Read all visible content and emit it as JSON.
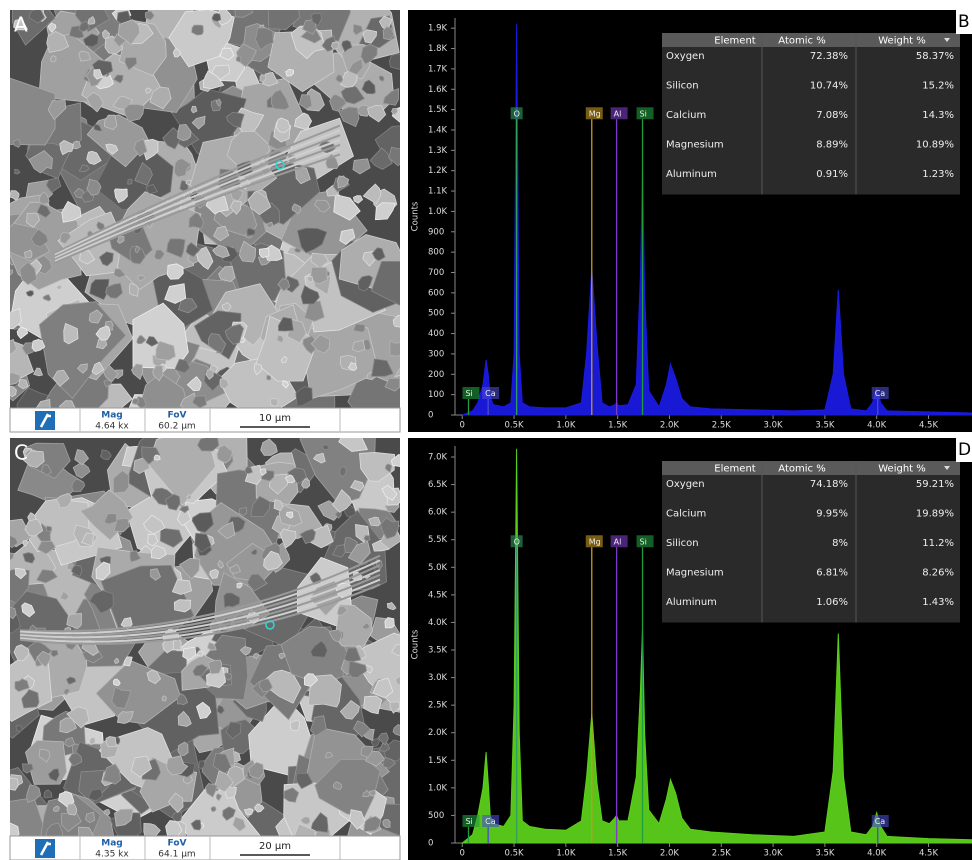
{
  "images": [
    {
      "panel_label": "A",
      "mag_label": "Mag",
      "mag": "4.64 kx",
      "fov_label": "FoV",
      "fov": "60.2 µm",
      "scale_bar": "10 µm"
    },
    {
      "panel_label": "C",
      "mag_label": "Mag",
      "mag": "4.35 kx",
      "fov_label": "FoV",
      "fov": "64.1 µm",
      "scale_bar": "20 µm"
    }
  ],
  "chart_data": [
    {
      "type": "area",
      "panel_label": "B",
      "y_label": "Counts",
      "x": [
        0,
        100,
        150,
        200,
        230,
        250,
        270,
        300,
        400,
        470,
        500,
        525,
        550,
        580,
        650,
        800,
        1000,
        1150,
        1200,
        1250,
        1300,
        1350,
        1420,
        1470,
        1490,
        1510,
        1600,
        1680,
        1720,
        1740,
        1760,
        1800,
        1900,
        1970,
        2010,
        2060,
        2120,
        2200,
        2400,
        2800,
        3200,
        3500,
        3580,
        3630,
        3680,
        3750,
        3900,
        3960,
        4000,
        4040,
        4100,
        4500,
        4920
      ],
      "series": [
        {
          "color": "#1a1ae0",
          "values": [
            0,
            20,
            60,
            150,
            270,
            200,
            90,
            50,
            40,
            60,
            300,
            1920,
            300,
            60,
            40,
            35,
            35,
            60,
            300,
            720,
            350,
            60,
            40,
            50,
            60,
            45,
            50,
            150,
            700,
            1220,
            600,
            120,
            40,
            150,
            250,
            180,
            80,
            40,
            30,
            25,
            20,
            25,
            200,
            615,
            200,
            30,
            20,
            60,
            130,
            60,
            20,
            15,
            10
          ]
        }
      ],
      "xlim": [
        -70,
        4920
      ],
      "ylim": [
        0,
        1950
      ],
      "xticks": [
        0,
        {
          "value": 500,
          "label": "0.5K"
        },
        {
          "value": 1000,
          "label": "1.0K"
        },
        {
          "value": 1500,
          "label": "1.5K"
        },
        {
          "value": 2000,
          "label": "2.0K"
        },
        {
          "value": 2500,
          "label": "2.5K"
        },
        {
          "value": 3000,
          "label": "3.0K"
        },
        {
          "value": 3500,
          "label": "3.5K"
        },
        {
          "value": 4000,
          "label": "4.0K"
        },
        {
          "value": 4500,
          "label": "4.5K"
        }
      ],
      "yticks": [
        0,
        100,
        200,
        300,
        400,
        500,
        600,
        700,
        800,
        900,
        {
          "value": 1000,
          "label": "1.0K"
        },
        {
          "value": 1100,
          "label": "1.1K"
        },
        {
          "value": 1200,
          "label": "1.2K"
        },
        {
          "value": 1300,
          "label": "1.3K"
        },
        {
          "value": 1400,
          "label": "1.4K"
        },
        {
          "value": 1500,
          "label": "1.5K"
        },
        {
          "value": 1600,
          "label": "1.6K"
        },
        {
          "value": 1700,
          "label": "1.7K"
        },
        {
          "value": 1800,
          "label": "1.8K"
        },
        {
          "value": 1900,
          "label": "1.9K"
        }
      ],
      "markers_top": [
        {
          "label": "O",
          "x": 525,
          "color": "#2f9e5f"
        },
        {
          "label": "Mg",
          "x": 1250,
          "color": "#c79a1e"
        },
        {
          "label": "Al",
          "x": 1490,
          "color": "#7a3cc8"
        },
        {
          "label": "Si",
          "x": 1740,
          "color": "#1f9e3f"
        }
      ],
      "markers_bottom": [
        {
          "label": "Si",
          "x": 60,
          "color": "#1f9e3f"
        },
        {
          "label": "Ca",
          "x": 250,
          "color": "#4a4ad0"
        },
        {
          "label": "Ca",
          "x": 4010,
          "color": "#4a4ad0"
        }
      ],
      "table": {
        "columns": [
          "Element",
          "Atomic %",
          "Weight %"
        ],
        "rows": [
          [
            "Oxygen",
            "72.38%",
            "58.37%"
          ],
          [
            "Silicon",
            "10.74%",
            "15.2%"
          ],
          [
            "Calcium",
            "7.08%",
            "14.3%"
          ],
          [
            "Magnesium",
            "8.89%",
            "10.89%"
          ],
          [
            "Aluminum",
            "0.91%",
            "1.23%"
          ]
        ]
      }
    },
    {
      "type": "area",
      "panel_label": "D",
      "y_label": "Counts",
      "x": [
        0,
        100,
        150,
        200,
        230,
        250,
        270,
        300,
        400,
        470,
        500,
        525,
        550,
        580,
        650,
        800,
        1000,
        1150,
        1200,
        1250,
        1300,
        1350,
        1420,
        1470,
        1490,
        1510,
        1600,
        1680,
        1720,
        1740,
        1760,
        1800,
        1900,
        1970,
        2010,
        2060,
        2120,
        2200,
        2400,
        2800,
        3200,
        3500,
        3580,
        3630,
        3680,
        3750,
        3900,
        3960,
        4000,
        4040,
        4100,
        4500,
        4920
      ],
      "series": [
        {
          "color": "#5ccf1a",
          "values": [
            0,
            150,
            500,
            1000,
            1650,
            1100,
            500,
            350,
            300,
            500,
            2500,
            7150,
            2000,
            400,
            300,
            250,
            230,
            400,
            1200,
            2350,
            1100,
            400,
            350,
            450,
            500,
            400,
            400,
            1200,
            2800,
            3900,
            2000,
            600,
            350,
            800,
            1150,
            900,
            450,
            250,
            200,
            150,
            120,
            200,
            1300,
            3800,
            1200,
            200,
            150,
            300,
            550,
            300,
            120,
            80,
            60
          ]
        }
      ],
      "xlim": [
        -70,
        4920
      ],
      "ylim": [
        0,
        7200
      ],
      "xticks": [
        0,
        {
          "value": 500,
          "label": "0.5K"
        },
        {
          "value": 1000,
          "label": "1.0K"
        },
        {
          "value": 1500,
          "label": "1.5K"
        },
        {
          "value": 2000,
          "label": "2.0K"
        },
        {
          "value": 2500,
          "label": "2.5K"
        },
        {
          "value": 3000,
          "label": "3.0K"
        },
        {
          "value": 3500,
          "label": "3.5K"
        },
        {
          "value": 4000,
          "label": "4.0K"
        },
        {
          "value": 4500,
          "label": "4.5K"
        }
      ],
      "yticks": [
        0,
        500,
        {
          "value": 1000,
          "label": "1.0K"
        },
        {
          "value": 1500,
          "label": "1.5K"
        },
        {
          "value": 2000,
          "label": "2.0K"
        },
        {
          "value": 2500,
          "label": "2.5K"
        },
        {
          "value": 3000,
          "label": "3.0K"
        },
        {
          "value": 3500,
          "label": "3.5K"
        },
        {
          "value": 4000,
          "label": "4.0K"
        },
        {
          "value": 4500,
          "label": "4.5K"
        },
        {
          "value": 5000,
          "label": "5.0K"
        },
        {
          "value": 5500,
          "label": "5.5K"
        },
        {
          "value": 6000,
          "label": "6.0K"
        },
        {
          "value": 6500,
          "label": "6.5K"
        },
        {
          "value": 7000,
          "label": "7.0K"
        }
      ],
      "markers_top": [
        {
          "label": "O",
          "x": 525,
          "color": "#2f9e5f"
        },
        {
          "label": "Mg",
          "x": 1250,
          "color": "#c79a1e"
        },
        {
          "label": "Al",
          "x": 1490,
          "color": "#7a3cc8"
        },
        {
          "label": "Si",
          "x": 1740,
          "color": "#1f9e3f"
        }
      ],
      "markers_bottom": [
        {
          "label": "Si",
          "x": 60,
          "color": "#1f9e3f"
        },
        {
          "label": "Ca",
          "x": 250,
          "color": "#4a4ad0"
        },
        {
          "label": "Ca",
          "x": 4010,
          "color": "#4a4ad0"
        }
      ],
      "table": {
        "columns": [
          "Element",
          "Atomic %",
          "Weight %"
        ],
        "rows": [
          [
            "Oxygen",
            "74.18%",
            "59.21%"
          ],
          [
            "Calcium",
            "9.95%",
            "19.89%"
          ],
          [
            "Silicon",
            "8%",
            "11.2%"
          ],
          [
            "Magnesium",
            "6.81%",
            "8.26%"
          ],
          [
            "Aluminum",
            "1.06%",
            "1.43%"
          ]
        ]
      }
    }
  ]
}
